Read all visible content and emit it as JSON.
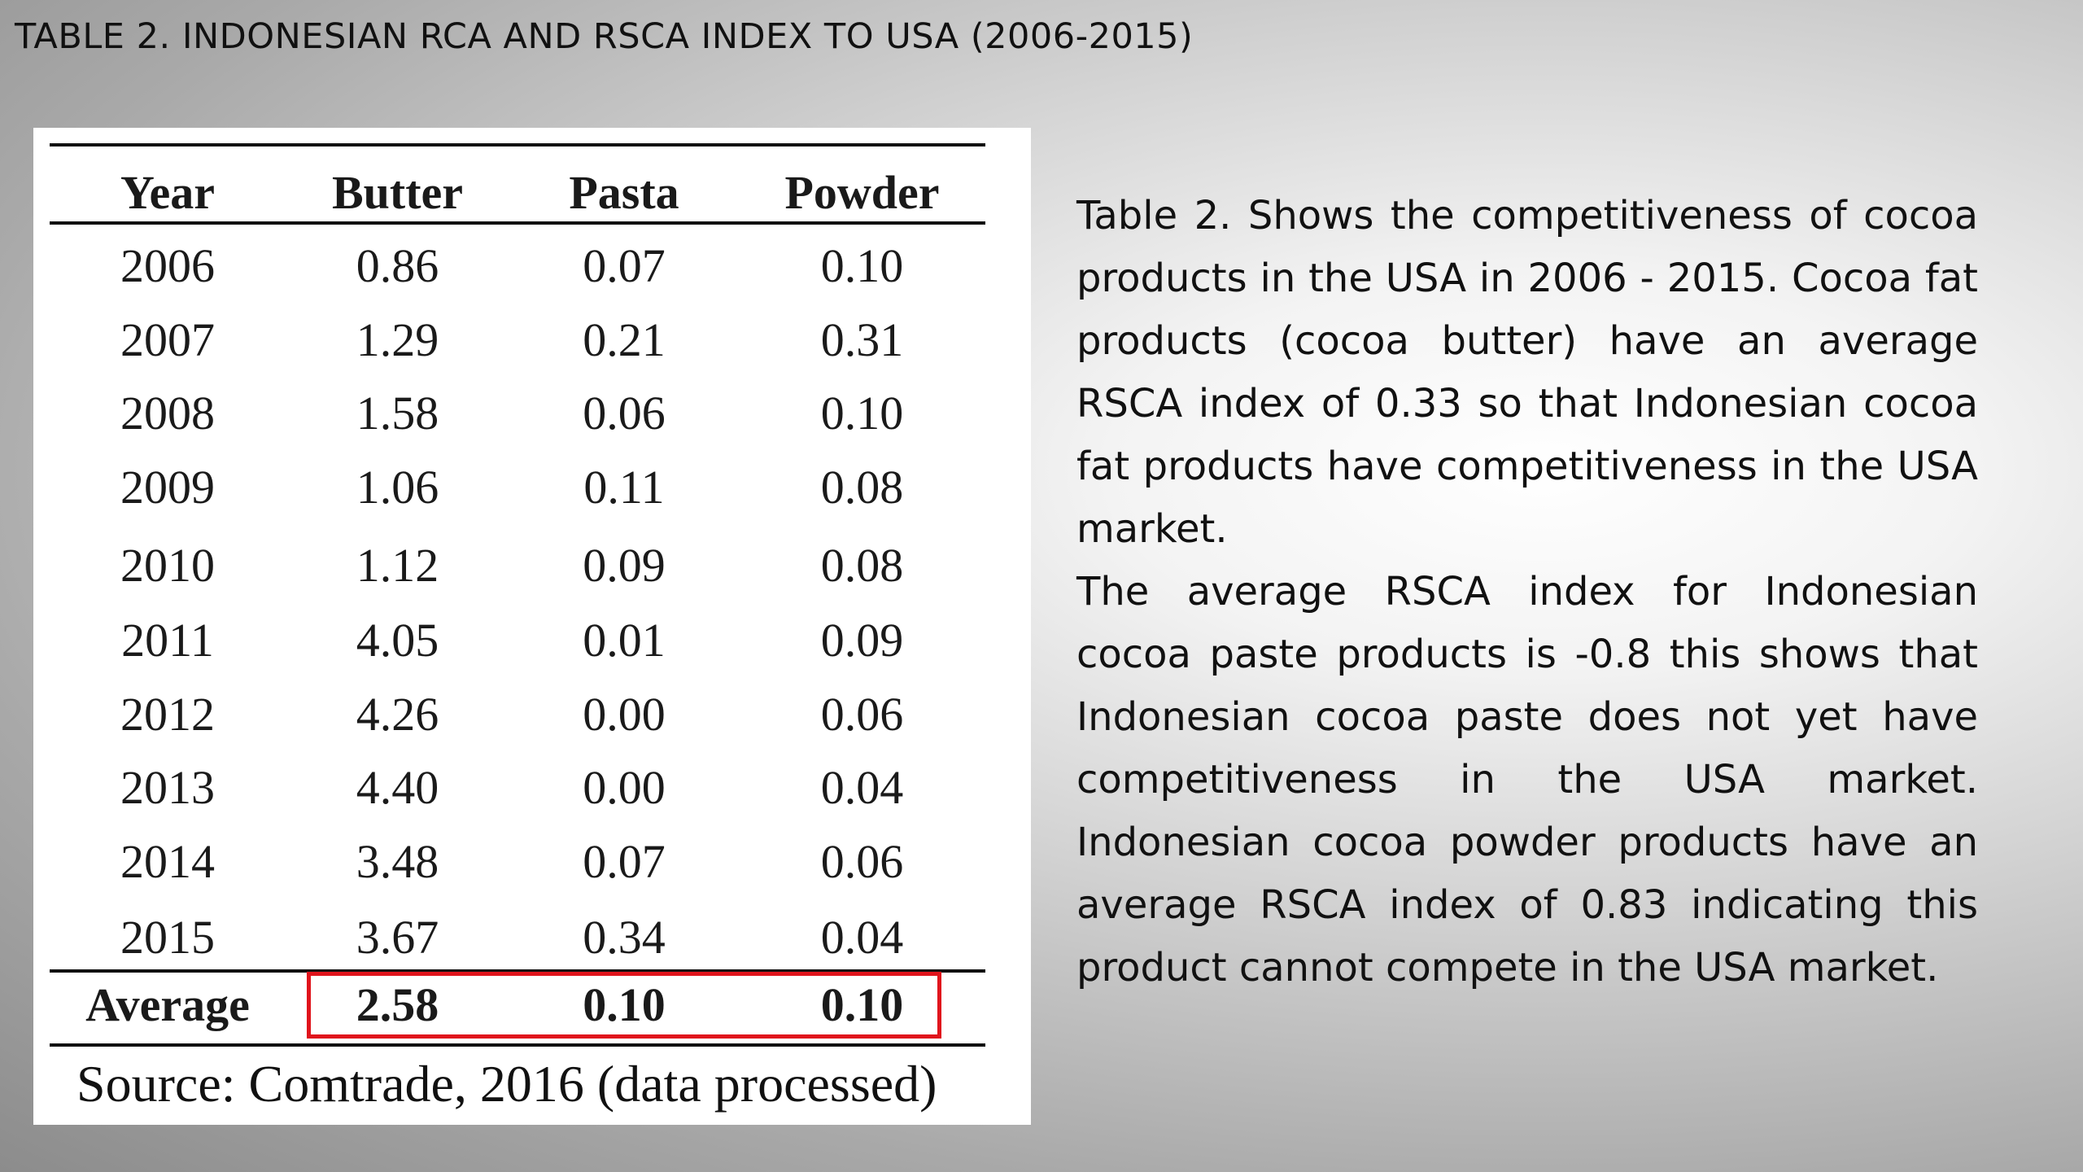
{
  "slide": {
    "title": "TABLE 2. INDONESIAN RCA AND RSCA INDEX TO USA (2006-2015)"
  },
  "table": {
    "columns": [
      "Year",
      "Butter",
      "Pasta",
      "Powder"
    ],
    "rows": [
      [
        "2006",
        "0.86",
        "0.07",
        "0.10"
      ],
      [
        "2007",
        "1.29",
        "0.21",
        "0.31"
      ],
      [
        "2008",
        "1.58",
        "0.06",
        "0.10"
      ],
      [
        "2009",
        "1.06",
        "0.11",
        "0.08"
      ],
      [
        "2010",
        "1.12",
        "0.09",
        "0.08"
      ],
      [
        "2011",
        "4.05",
        "0.01",
        "0.09"
      ],
      [
        "2012",
        "4.26",
        "0.00",
        "0.06"
      ],
      [
        "2013",
        "4.40",
        "0.00",
        "0.04"
      ],
      [
        "2014",
        "3.48",
        "0.07",
        "0.06"
      ],
      [
        "2015",
        "3.67",
        "0.34",
        "0.04"
      ]
    ],
    "average": [
      "Average",
      "2.58",
      "0.10",
      "0.10"
    ],
    "highlight_color": "#e0141c",
    "source": "Source: Comtrade, 2016 (data processed)"
  },
  "description": {
    "paragraph_1": "Table 2. Shows the competitiveness of cocoa products in the USA in 2006 - 2015. Cocoa fat products (cocoa butter) have an average RSCA index of 0.33 so that Indonesian cocoa fat products have competitiveness in the USA market.",
    "paragraph_2": "The average RSCA index for Indonesian cocoa paste products is -0.8 this shows that Indonesian cocoa paste does not yet have competitiveness in the USA market. Indonesian cocoa powder products have an average RSCA index of 0.83 indicating this product cannot compete in the USA market."
  }
}
